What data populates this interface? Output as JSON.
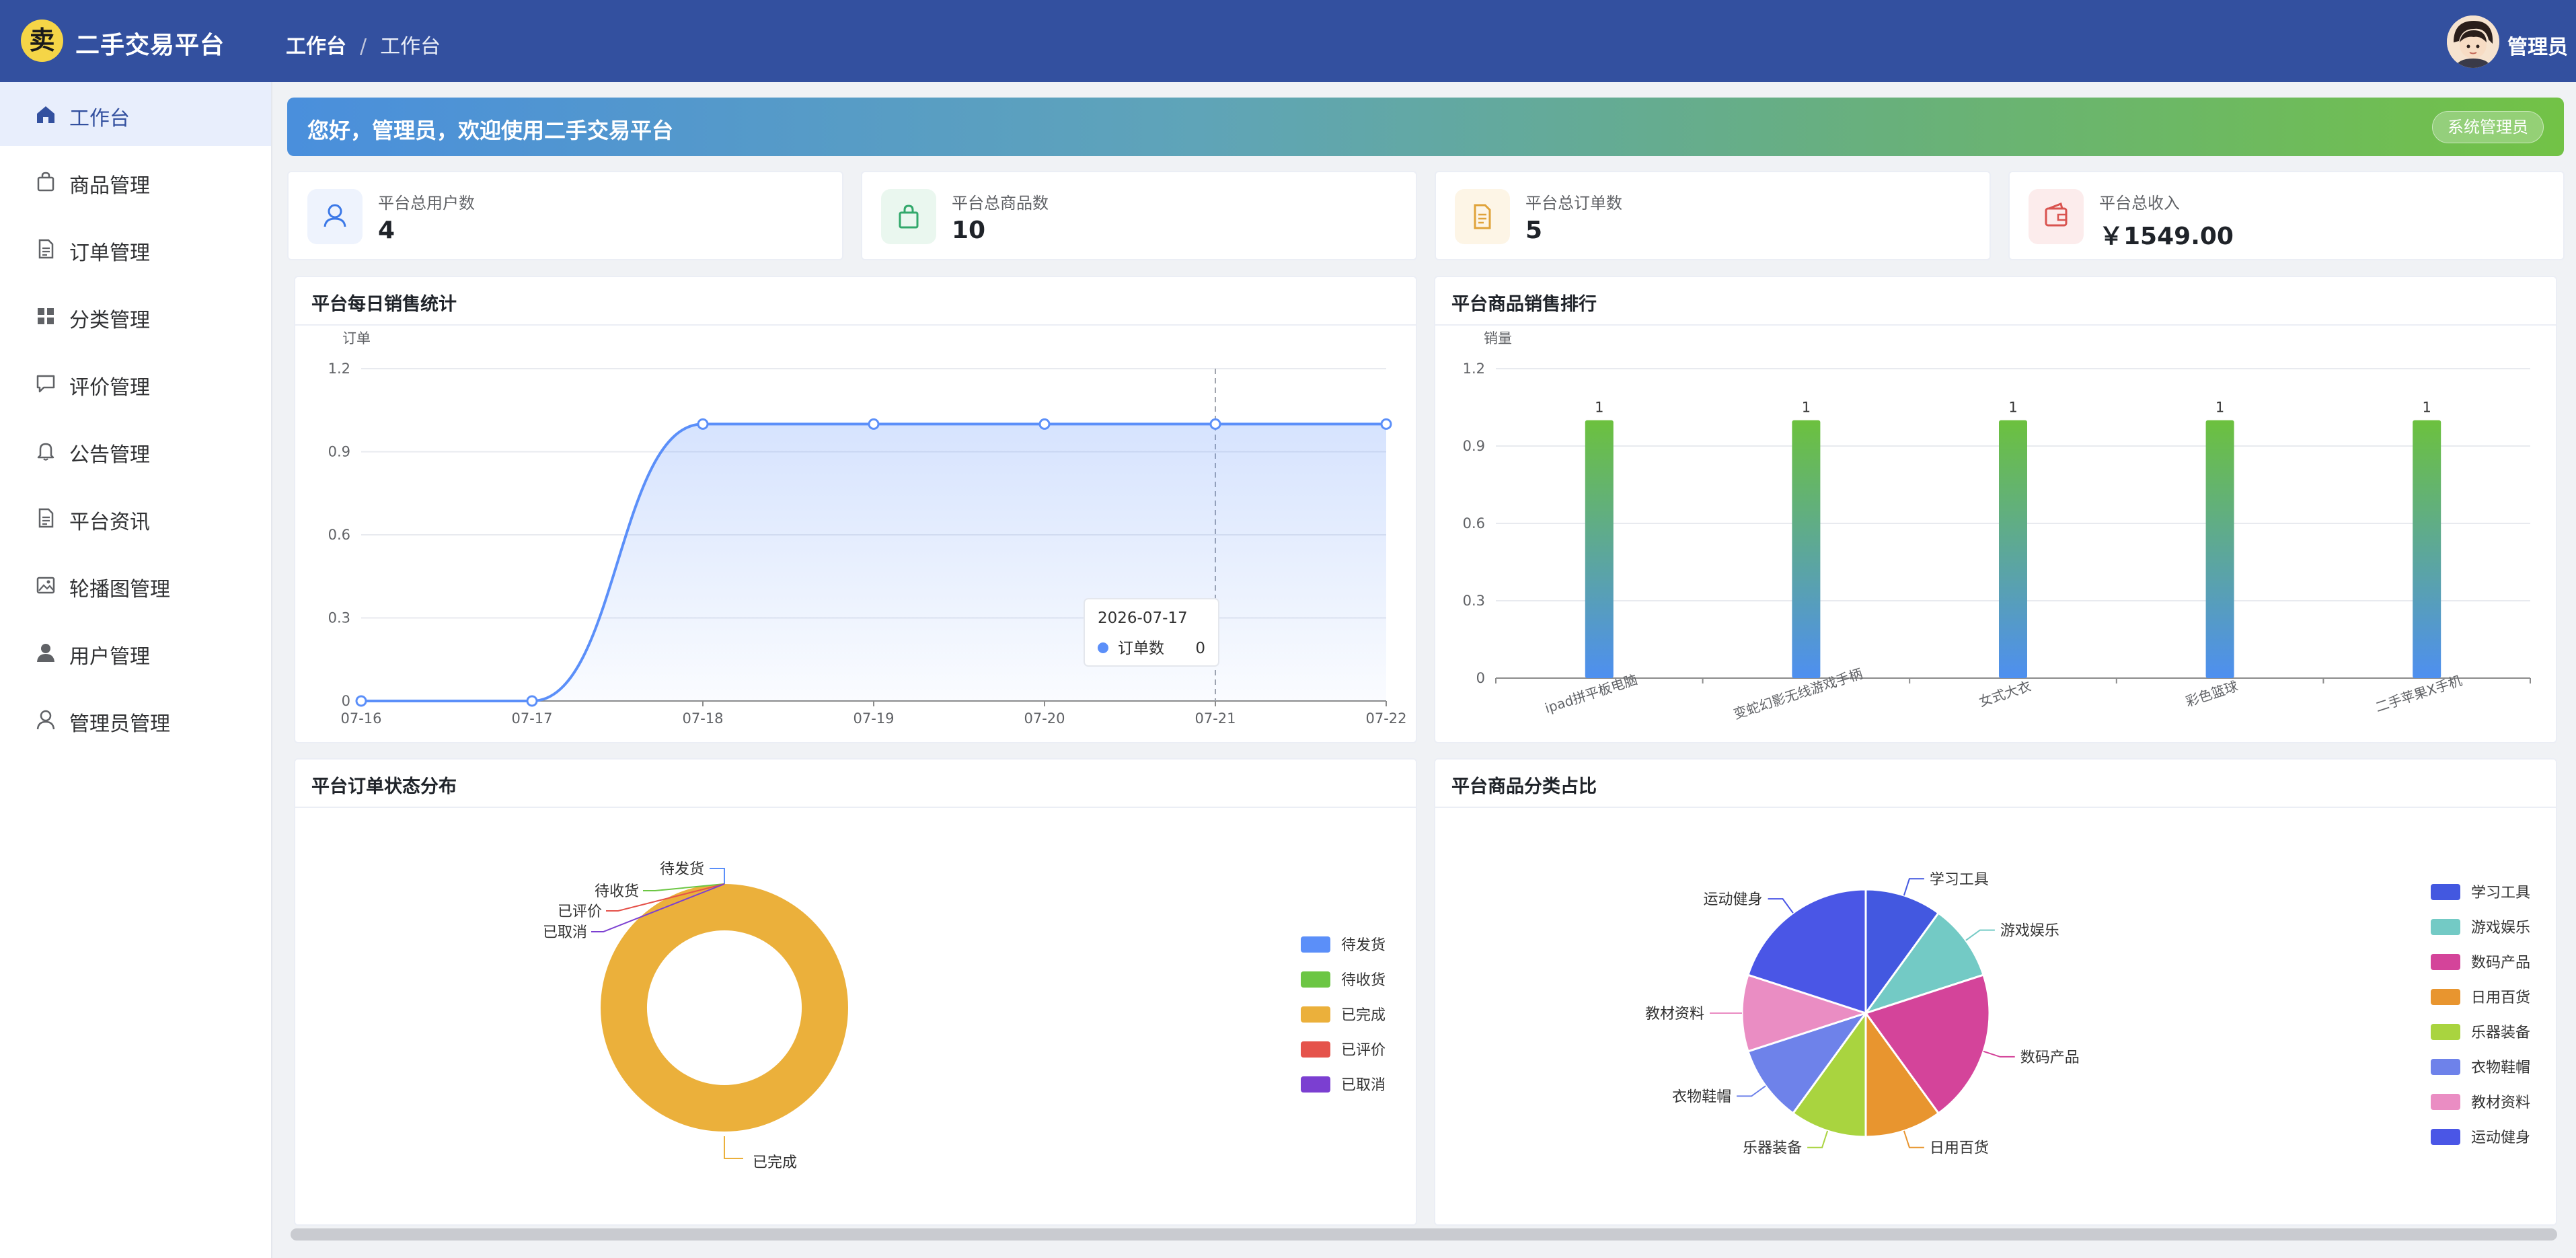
{
  "header": {
    "logo_glyph": "卖",
    "app_title": "二手交易平台",
    "breadcrumb": [
      "工作台",
      "工作台"
    ],
    "breadcrumb_sep": "/",
    "user_name": "管理员"
  },
  "sidebar": {
    "items": [
      {
        "label": "工作台",
        "icon": "home-icon",
        "active": true
      },
      {
        "label": "商品管理",
        "icon": "shopping-bag-icon"
      },
      {
        "label": "订单管理",
        "icon": "document-icon"
      },
      {
        "label": "分类管理",
        "icon": "grid-icon"
      },
      {
        "label": "评价管理",
        "icon": "chat-bubble-icon"
      },
      {
        "label": "公告管理",
        "icon": "bell-icon"
      },
      {
        "label": "平台资讯",
        "icon": "document-icon"
      },
      {
        "label": "轮播图管理",
        "icon": "picture-icon"
      },
      {
        "label": "用户管理",
        "icon": "user-solid-icon"
      },
      {
        "label": "管理员管理",
        "icon": "user-outline-icon"
      }
    ]
  },
  "welcome": {
    "text": "您好，管理员，欢迎使用二手交易平台",
    "role": "系统管理员"
  },
  "stats": [
    {
      "label": "平台总用户数",
      "value": "4",
      "icon": "user-icon",
      "color": "#3b78e7",
      "bg": "#eef3fd"
    },
    {
      "label": "平台总商品数",
      "value": "10",
      "icon": "shopping-bag-icon",
      "color": "#32a86b",
      "bg": "#eaf7ef"
    },
    {
      "label": "平台总订单数",
      "value": "5",
      "icon": "document-icon",
      "color": "#e0a33a",
      "bg": "#fdf5e6"
    },
    {
      "label": "平台总收入",
      "value": "￥1549.00",
      "icon": "wallet-icon",
      "color": "#d9534f",
      "bg": "#fcecec"
    }
  ],
  "cards": {
    "daily": "平台每日销售统计",
    "rank": "平台商品销售排行",
    "status": "平台订单状态分布",
    "category": "平台商品分类占比"
  },
  "chart_data": [
    {
      "type": "line",
      "title": "平台每日销售统计",
      "ylabel": "订单",
      "x": [
        "07-16",
        "07-17",
        "07-18",
        "07-19",
        "07-20",
        "07-21",
        "07-22"
      ],
      "series": [
        {
          "name": "订单数",
          "values": [
            0,
            0,
            1,
            1,
            1,
            1,
            1
          ],
          "color": "#5b8ff9"
        }
      ],
      "ylim": [
        0,
        1.2
      ],
      "yticks": [
        "0",
        "0.3",
        "0.6",
        "0.9",
        "1.2"
      ],
      "tooltip": {
        "title": "2026-07-17",
        "series": "订单数",
        "value": "0"
      }
    },
    {
      "type": "bar",
      "title": "平台商品销售排行",
      "ylabel": "销量",
      "categories": [
        "ipad拼平板电脑",
        "变蛇幻影无线游戏手柄",
        "女式大衣",
        "彩色篮球",
        "二手苹果X手机"
      ],
      "values": [
        1,
        1,
        1,
        1,
        1
      ],
      "labels": [
        "1",
        "1",
        "1",
        "1",
        "1"
      ],
      "ylim": [
        0,
        1.2
      ],
      "yticks": [
        "0",
        "0.3",
        "0.6",
        "0.9",
        "1.2"
      ]
    },
    {
      "type": "pie",
      "title": "平台订单状态分布",
      "legend": "right",
      "slices": [
        {
          "name": "待发货",
          "value": 0,
          "color": "#5b8ff9"
        },
        {
          "name": "待收货",
          "value": 0,
          "color": "#6cc644"
        },
        {
          "name": "已完成",
          "value": 5,
          "color": "#ebb03b"
        },
        {
          "name": "已评价",
          "value": 0,
          "color": "#e5534b"
        },
        {
          "name": "已取消",
          "value": 0,
          "color": "#7b3fd1"
        }
      ]
    },
    {
      "type": "pie",
      "title": "平台商品分类占比",
      "legend": "right",
      "slices": [
        {
          "name": "学习工具",
          "value": 1,
          "color": "#4358e0"
        },
        {
          "name": "游戏娱乐",
          "value": 1,
          "color": "#73cac5"
        },
        {
          "name": "数码产品",
          "value": 2,
          "color": "#d4449a"
        },
        {
          "name": "日用百货",
          "value": 1,
          "color": "#e8952f"
        },
        {
          "name": "乐器装备",
          "value": 1,
          "color": "#a9d43f"
        },
        {
          "name": "衣物鞋帽",
          "value": 1,
          "color": "#6e82ea"
        },
        {
          "name": "教材资料",
          "value": 1,
          "color": "#ea8dc3"
        },
        {
          "name": "运动健身",
          "value": 2,
          "color": "#4a56e6"
        }
      ]
    }
  ]
}
